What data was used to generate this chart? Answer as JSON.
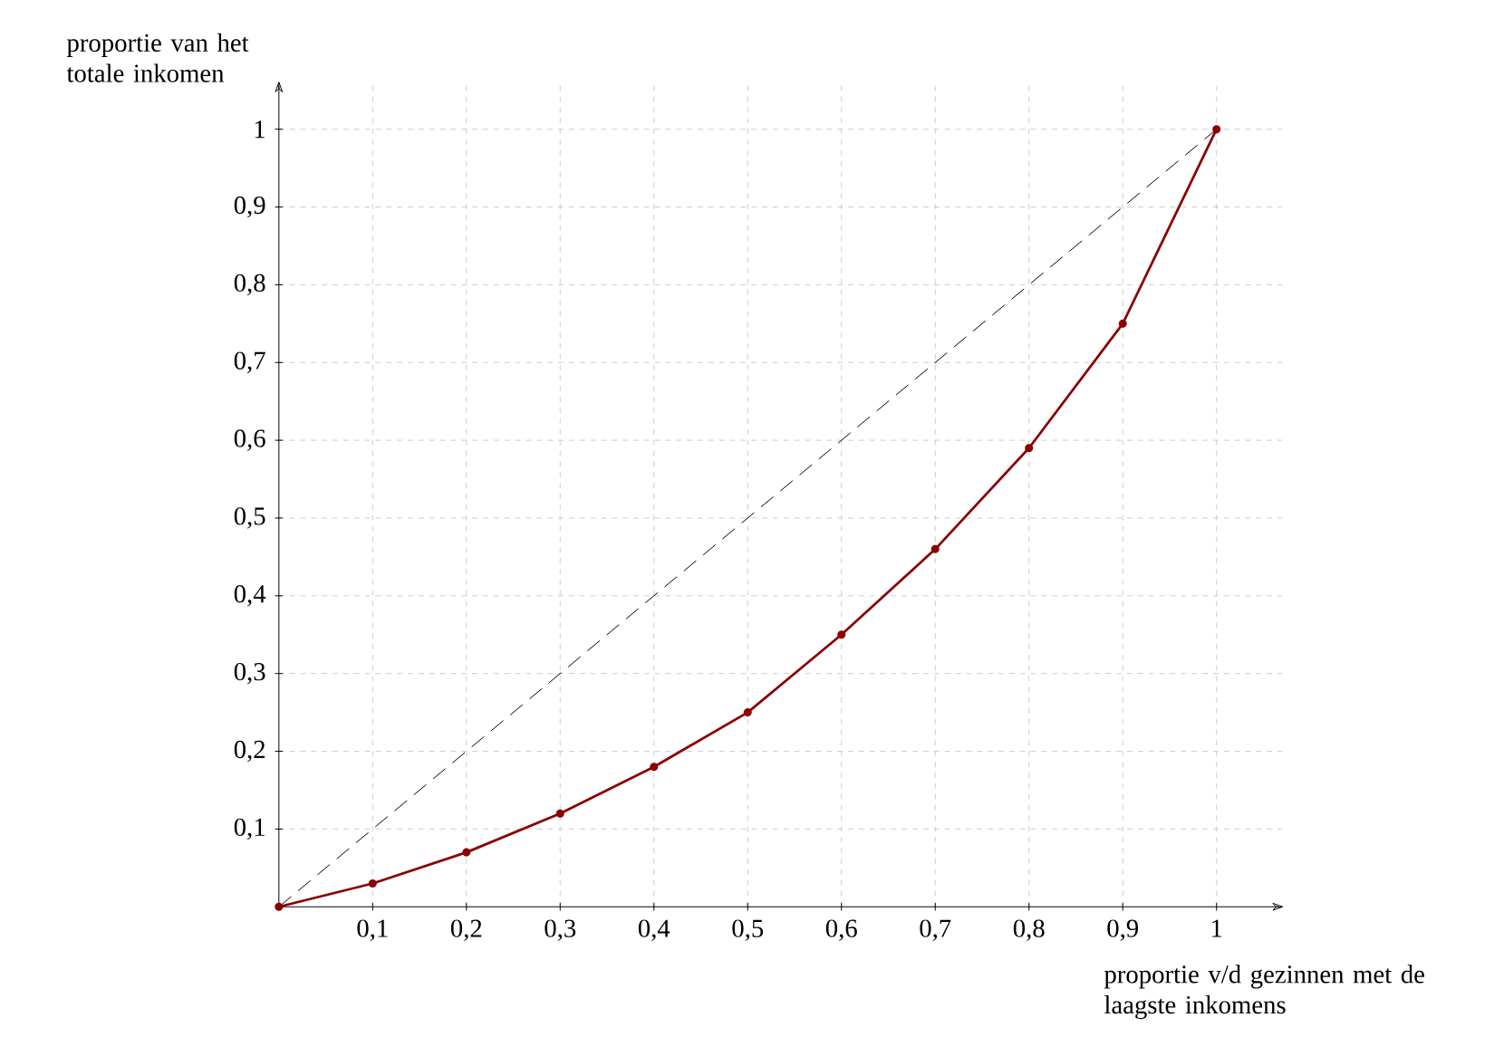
{
  "chart_data": {
    "type": "line",
    "xlabel": "proportie v/d gezinnen met de laagste inkomens",
    "ylabel": "proportie van het totale inkomen",
    "series": [
      {
        "x": [
          0,
          0.1,
          0.2,
          0.3,
          0.4,
          0.5,
          0.6,
          0.7,
          0.8,
          0.9,
          1
        ],
        "values": [
          0,
          0.03,
          0.07,
          0.12,
          0.18,
          0.25,
          0.35,
          0.46,
          0.59,
          0.75,
          1
        ],
        "color": "#8b0000",
        "marker": "circle",
        "line_style": "solid"
      },
      {
        "x": [
          0,
          1
        ],
        "values": [
          0,
          1
        ],
        "color": "#000000",
        "marker": "none",
        "line_style": "dashed"
      }
    ],
    "xlim": [
      0,
      1.07
    ],
    "ylim": [
      0,
      1.06
    ],
    "xticks": [
      {
        "value": 0.1,
        "label": "0,1"
      },
      {
        "value": 0.2,
        "label": "0,2"
      },
      {
        "value": 0.3,
        "label": "0,3"
      },
      {
        "value": 0.4,
        "label": "0,4"
      },
      {
        "value": 0.5,
        "label": "0,5"
      },
      {
        "value": 0.6,
        "label": "0,6"
      },
      {
        "value": 0.7,
        "label": "0,7"
      },
      {
        "value": 0.8,
        "label": "0,8"
      },
      {
        "value": 0.9,
        "label": "0,9"
      },
      1
    ],
    "yticks": [
      {
        "value": 0.1,
        "label": "0,1"
      },
      {
        "value": 0.2,
        "label": "0,2"
      },
      {
        "value": 0.3,
        "label": "0,3"
      },
      {
        "value": 0.4,
        "label": "0,4"
      },
      {
        "value": 0.5,
        "label": "0,5"
      },
      {
        "value": 0.6,
        "label": "0,6"
      },
      {
        "value": 0.7,
        "label": "0,7"
      },
      {
        "value": 0.8,
        "label": "0,8"
      },
      {
        "value": 0.9,
        "label": "0,9"
      },
      1
    ],
    "grid": true
  }
}
